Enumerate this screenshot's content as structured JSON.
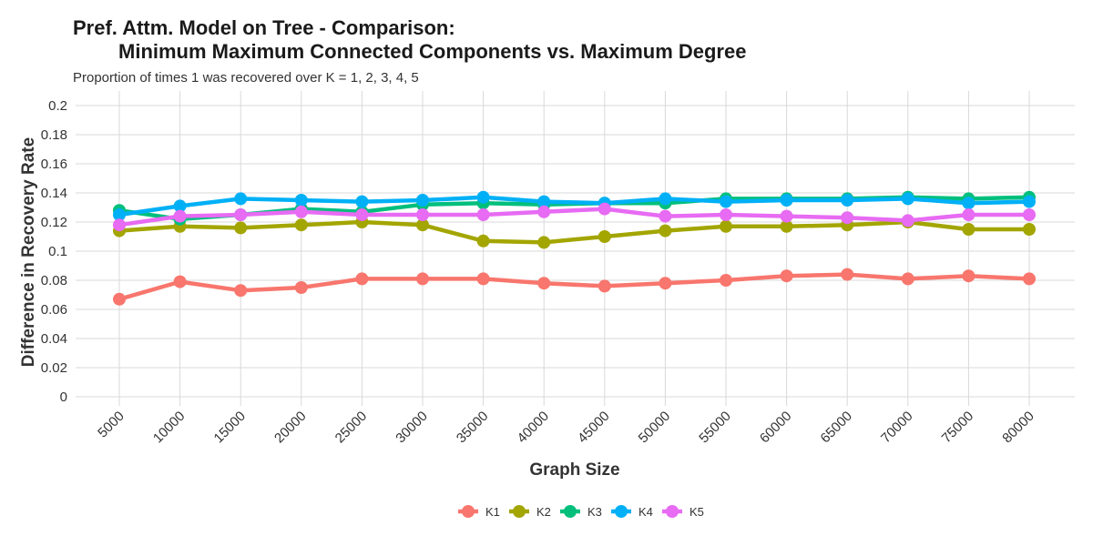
{
  "chart_data": {
    "type": "line",
    "title_line1": "Pref. Attm. Model on Tree - Comparison:",
    "title_line2": "Minimum Maximum Connected Components vs. Maximum Degree",
    "subtitle": "Proportion of times 1 was recovered over K = 1, 2, 3, 4, 5",
    "xlabel": "Graph Size",
    "ylabel": "Difference in Recovery Rate",
    "categories": [
      "5000",
      "10000",
      "15000",
      "20000",
      "25000",
      "30000",
      "35000",
      "40000",
      "45000",
      "50000",
      "55000",
      "60000",
      "65000",
      "70000",
      "75000",
      "80000"
    ],
    "y_ticks": [
      "0",
      "0.02",
      "0.04",
      "0.06",
      "0.08",
      "0.1",
      "0.12",
      "0.14",
      "0.16",
      "0.18",
      "0.2"
    ],
    "ylim": [
      0,
      0.2
    ],
    "grid": true,
    "legend_position": "bottom",
    "series": [
      {
        "name": "K1",
        "color": "#F8766D",
        "values": [
          0.067,
          0.079,
          0.073,
          0.075,
          0.081,
          0.081,
          0.081,
          0.078,
          0.076,
          0.078,
          0.08,
          0.083,
          0.084,
          0.081,
          0.083,
          0.081
        ]
      },
      {
        "name": "K2",
        "color": "#A3A500",
        "values": [
          0.114,
          0.117,
          0.116,
          0.118,
          0.12,
          0.118,
          0.107,
          0.106,
          0.11,
          0.114,
          0.117,
          0.117,
          0.118,
          0.12,
          0.115,
          0.115
        ]
      },
      {
        "name": "K3",
        "color": "#00BF7D",
        "values": [
          0.128,
          0.122,
          0.125,
          0.129,
          0.127,
          0.132,
          0.133,
          0.132,
          0.133,
          0.133,
          0.136,
          0.136,
          0.136,
          0.137,
          0.136,
          0.137
        ]
      },
      {
        "name": "K4",
        "color": "#00B0F6",
        "values": [
          0.125,
          0.131,
          0.136,
          0.135,
          0.134,
          0.135,
          0.137,
          0.134,
          0.133,
          0.136,
          0.134,
          0.135,
          0.135,
          0.136,
          0.133,
          0.134
        ]
      },
      {
        "name": "K5",
        "color": "#E76BF3",
        "values": [
          0.118,
          0.124,
          0.125,
          0.127,
          0.125,
          0.125,
          0.125,
          0.127,
          0.129,
          0.124,
          0.125,
          0.124,
          0.123,
          0.121,
          0.125,
          0.125
        ]
      }
    ]
  }
}
